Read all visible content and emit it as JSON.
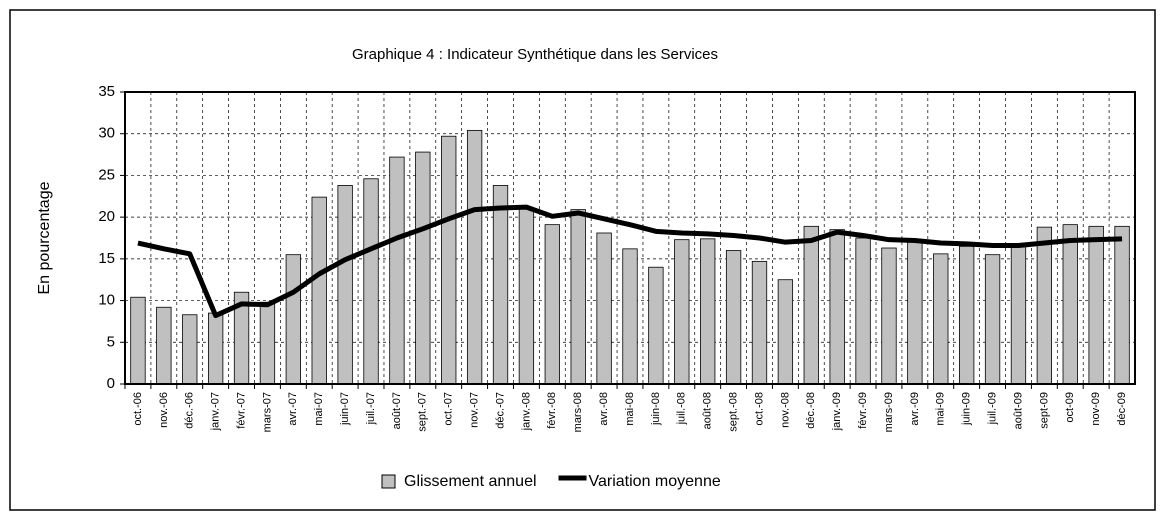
{
  "chart_data": {
    "type": "bar",
    "title": "Graphique 4 : Indicateur Synthétique dans les Services",
    "y_label": "En pourcentage",
    "categories": [
      "oct.-06",
      "nov.-06",
      "déc.-06",
      "janv.-07",
      "févr.-07",
      "mars-07",
      "avr.-07",
      "mai-07",
      "juin-07",
      "juil.-07",
      "août-07",
      "sept.-07",
      "oct.-07",
      "nov.-07",
      "déc.-07",
      "janv.-08",
      "févr.-08",
      "mars-08",
      "avr.-08",
      "mai-08",
      "juin-08",
      "juil.-08",
      "août-08",
      "sept.-08",
      "oct.-08",
      "nov.-08",
      "déc.-08",
      "janv.-09",
      "févr.-09",
      "mars-09",
      "avr.-09",
      "mai-09",
      "juin-09",
      "juil.-09",
      "août-09",
      "sept-09",
      "oct-09",
      "nov-09",
      "déc-09"
    ],
    "series": [
      {
        "name": "Glissement annuel",
        "type": "bar",
        "color": "#c0c0c0",
        "values": [
          10.4,
          9.2,
          8.3,
          8.5,
          11,
          9.8,
          15.5,
          22.4,
          23.8,
          24.6,
          27.2,
          27.8,
          29.7,
          30.4,
          23.8,
          21,
          19.1,
          20.9,
          18.1,
          16.2,
          14,
          17.3,
          17.4,
          16,
          14.7,
          12.5,
          18.9,
          18.5,
          17.5,
          16.3,
          17,
          15.6,
          16.5,
          15.5,
          16.5,
          18.8,
          19.1,
          18.9,
          18.9
        ]
      },
      {
        "name": "Variation moyenne",
        "type": "line",
        "color": "#000000",
        "values": [
          16.9,
          16.2,
          15.6,
          8.2,
          9.6,
          9.5,
          11,
          13.2,
          14.9,
          16.2,
          17.5,
          18.6,
          19.8,
          20.9,
          21.1,
          21.2,
          20.1,
          20.5,
          19.8,
          19.1,
          18.3,
          18.1,
          18,
          17.8,
          17.5,
          17,
          17.2,
          18.2,
          17.8,
          17.3,
          17.2,
          16.9,
          16.8,
          16.6,
          16.6,
          16.9,
          17.2,
          17.3,
          17.4
        ]
      }
    ],
    "ylim": [
      0,
      35
    ],
    "yticks": [
      0,
      5,
      10,
      15,
      20,
      25,
      30,
      35
    ],
    "grid": true,
    "legend": "bottom"
  }
}
